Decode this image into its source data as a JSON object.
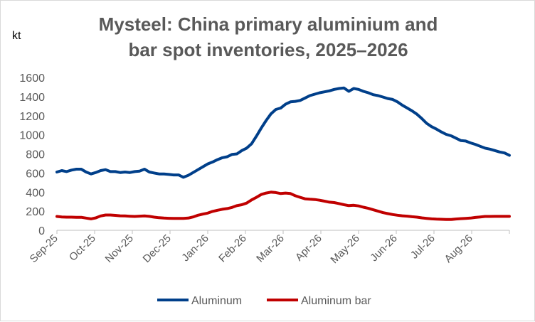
{
  "chart_data": {
    "type": "line",
    "title_lines": [
      "Mysteel: China primary aluminium and",
      "bar spot inventories, 2025–2026"
    ],
    "ylabel": "kt",
    "xlabel": "",
    "ylim": [
      0,
      1600
    ],
    "yticks": [
      "0",
      "200",
      "400",
      "600",
      "800",
      "1000",
      "1200",
      "1400",
      "1600"
    ],
    "x_labels": [
      "Sep-25",
      "Oct-25",
      "Nov-25",
      "Dec-25",
      "Jan-26",
      "Feb-26",
      "Mar-26",
      "Apr-26",
      "May-26",
      "Jun-26",
      "Jul-26",
      "Aug-26"
    ],
    "grid": false,
    "legend_position": "bottom",
    "series": [
      {
        "name": "Aluminum",
        "color": "#003f8a",
        "values": [
          610,
          625,
          615,
          630,
          640,
          640,
          610,
          590,
          605,
          625,
          635,
          615,
          615,
          605,
          610,
          605,
          615,
          620,
          640,
          610,
          600,
          590,
          590,
          585,
          580,
          580,
          555,
          575,
          605,
          635,
          665,
          695,
          715,
          740,
          760,
          770,
          795,
          800,
          835,
          860,
          905,
          985,
          1070,
          1150,
          1220,
          1265,
          1280,
          1320,
          1345,
          1350,
          1360,
          1385,
          1410,
          1425,
          1440,
          1450,
          1460,
          1475,
          1485,
          1490,
          1455,
          1485,
          1475,
          1455,
          1440,
          1420,
          1410,
          1395,
          1380,
          1370,
          1345,
          1310,
          1280,
          1250,
          1215,
          1170,
          1120,
          1085,
          1060,
          1030,
          1005,
          990,
          965,
          940,
          935,
          915,
          900,
          880,
          860,
          850,
          835,
          820,
          810,
          785
        ]
      },
      {
        "name": "Aluminum bar",
        "color": "#c00000",
        "values": [
          145,
          140,
          138,
          138,
          136,
          136,
          128,
          120,
          130,
          150,
          160,
          160,
          156,
          152,
          150,
          147,
          145,
          148,
          150,
          146,
          138,
          132,
          128,
          126,
          124,
          125,
          125,
          128,
          140,
          158,
          170,
          180,
          198,
          210,
          220,
          228,
          240,
          258,
          268,
          285,
          318,
          345,
          375,
          390,
          400,
          395,
          385,
          390,
          385,
          362,
          345,
          330,
          325,
          322,
          315,
          305,
          295,
          290,
          280,
          268,
          258,
          262,
          255,
          242,
          230,
          215,
          200,
          185,
          175,
          165,
          158,
          152,
          148,
          142,
          138,
          130,
          125,
          120,
          117,
          115,
          114,
          113,
          118,
          122,
          125,
          128,
          135,
          140,
          145,
          145,
          146,
          146,
          146,
          146
        ]
      }
    ]
  }
}
